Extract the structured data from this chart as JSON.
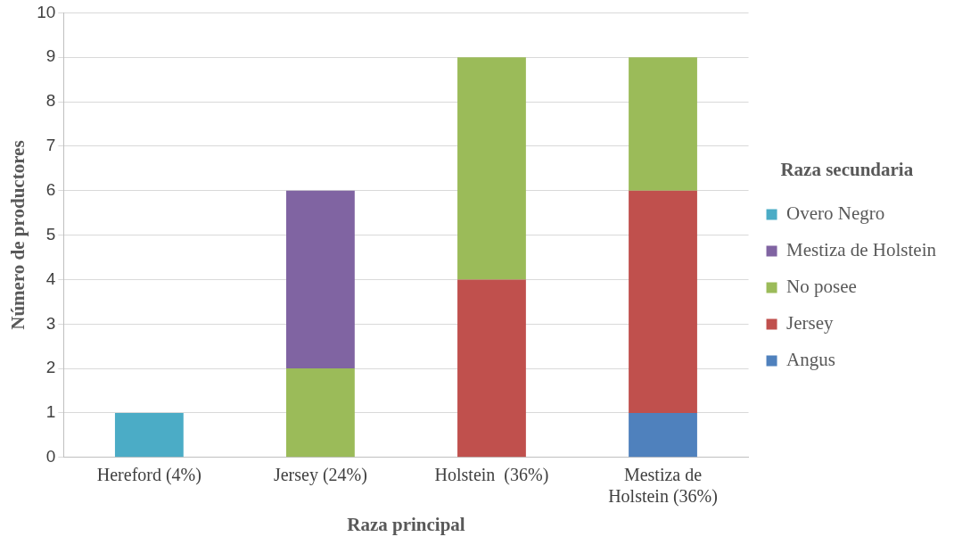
{
  "chart_data": {
    "type": "bar",
    "stacked": true,
    "xlabel": "Raza principal",
    "ylabel": "Número de productores",
    "legend_title": "Raza secundaria",
    "legend": "right",
    "grid": "y",
    "categories": [
      "Hereford (4%)",
      "Jersey (24%)",
      "Holstein  (36%)",
      "Mestiza de Holstein (36%)"
    ],
    "ylim": [
      0,
      10
    ],
    "yticks": [
      0,
      1,
      2,
      3,
      4,
      5,
      6,
      7,
      8,
      9,
      10
    ],
    "series": [
      {
        "name": "Angus",
        "color": "#4f81bd",
        "values": [
          null,
          null,
          null,
          1
        ]
      },
      {
        "name": "Jersey",
        "color": "#c0504d",
        "values": [
          null,
          null,
          4,
          5
        ]
      },
      {
        "name": "No posee",
        "color": "#9bbb59",
        "values": [
          null,
          2,
          5,
          3
        ]
      },
      {
        "name": "Mestiza de Holstein",
        "color": "#8064a2",
        "values": [
          null,
          4,
          null,
          null
        ]
      },
      {
        "name": "Overo Negro",
        "color": "#4bacc6",
        "values": [
          1,
          null,
          null,
          null
        ]
      }
    ]
  }
}
